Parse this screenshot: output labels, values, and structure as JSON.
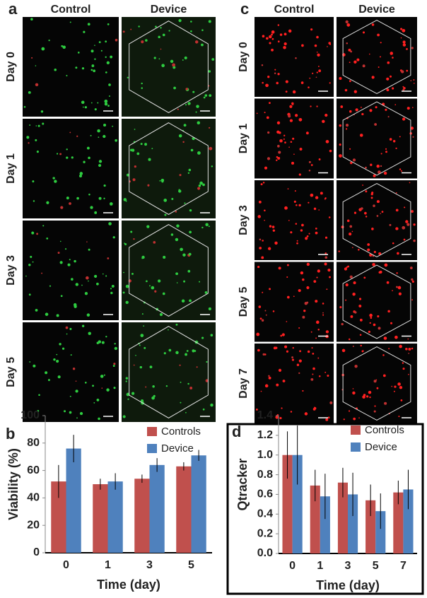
{
  "images": [
    {
      "label": "a",
      "columns": [
        "Control",
        "Device"
      ],
      "rows": [
        "Day 0",
        "Day 1",
        "Day 3",
        "Day 5"
      ],
      "dot_color": "#2ecc40"
    },
    {
      "label": "c",
      "columns": [
        "Control",
        "Device"
      ],
      "rows": [
        "Day 0",
        "Day 1",
        "Day 3",
        "Day 5",
        "Day 7"
      ],
      "dot_color": "#ff2020"
    }
  ],
  "chart_data": [
    {
      "type": "bar",
      "panel": "b",
      "ylabel": "Viability (%)",
      "xlabel": "Time (day)",
      "categories": [
        "0",
        "1",
        "3",
        "5"
      ],
      "series": [
        {
          "name": "Controls",
          "color": "#c0504d",
          "values": [
            52,
            50,
            54,
            63
          ],
          "errors": [
            12,
            4,
            3,
            3
          ]
        },
        {
          "name": "Device",
          "color": "#4f81bd",
          "values": [
            76,
            52,
            64,
            71
          ],
          "errors": [
            10,
            6,
            5,
            4
          ]
        }
      ],
      "ylim": [
        0,
        100
      ],
      "yticks": [
        0,
        20,
        40,
        60,
        80,
        100
      ],
      "legend": "top-right"
    },
    {
      "type": "bar",
      "panel": "d",
      "ylabel": "Qtracker",
      "xlabel": "Time (day)",
      "categories": [
        "0",
        "1",
        "3",
        "5",
        "7"
      ],
      "series": [
        {
          "name": "Controls",
          "color": "#c0504d",
          "values": [
            1.0,
            0.69,
            0.72,
            0.54,
            0.62
          ],
          "errors": [
            0.24,
            0.16,
            0.15,
            0.16,
            0.12
          ]
        },
        {
          "name": "Device",
          "color": "#4f81bd",
          "values": [
            1.0,
            0.58,
            0.6,
            0.43,
            0.65
          ],
          "errors": [
            0.3,
            0.23,
            0.22,
            0.18,
            0.2
          ]
        }
      ],
      "ylim": [
        0,
        1.4
      ],
      "yticks": [
        {
          "value": 0,
          "label": "0.0"
        },
        0.2,
        0.4,
        0.6,
        0.8,
        {
          "value": 1,
          "label": "1.0"
        },
        1.2,
        1.4
      ],
      "legend": "top-right"
    }
  ]
}
